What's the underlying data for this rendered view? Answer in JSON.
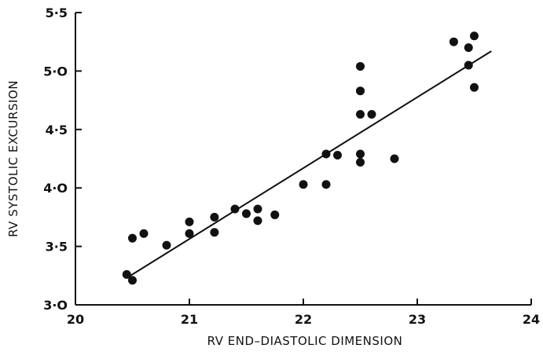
{
  "chart_data": {
    "type": "scatter",
    "title": "",
    "xlabel": "RV END–DIASTOLIC DIMENSION",
    "ylabel": "RV SYSTOLIC EXCURSION",
    "xlim": [
      20,
      24
    ],
    "ylim": [
      3.0,
      5.5
    ],
    "grid": false,
    "legend": "none",
    "x_ticks": [
      {
        "value": 20,
        "label": "20"
      },
      {
        "value": 21,
        "label": "21"
      },
      {
        "value": 22,
        "label": "22"
      },
      {
        "value": 23,
        "label": "23"
      },
      {
        "value": 24,
        "label": "24"
      }
    ],
    "y_ticks": [
      {
        "value": 3.0,
        "label": "3·O"
      },
      {
        "value": 3.5,
        "label": "3·5"
      },
      {
        "value": 4.0,
        "label": "4·O"
      },
      {
        "value": 4.5,
        "label": "4·5"
      },
      {
        "value": 5.0,
        "label": "5·O"
      },
      {
        "value": 5.5,
        "label": "5·5"
      }
    ],
    "points": [
      {
        "x": 20.45,
        "y": 3.26
      },
      {
        "x": 20.5,
        "y": 3.21
      },
      {
        "x": 20.5,
        "y": 3.57
      },
      {
        "x": 20.6,
        "y": 3.61
      },
      {
        "x": 20.8,
        "y": 3.51
      },
      {
        "x": 21.0,
        "y": 3.71
      },
      {
        "x": 21.0,
        "y": 3.61
      },
      {
        "x": 21.22,
        "y": 3.75
      },
      {
        "x": 21.22,
        "y": 3.62
      },
      {
        "x": 21.4,
        "y": 3.82
      },
      {
        "x": 21.5,
        "y": 3.78
      },
      {
        "x": 21.6,
        "y": 3.82
      },
      {
        "x": 21.6,
        "y": 3.72
      },
      {
        "x": 21.75,
        "y": 3.77
      },
      {
        "x": 22.0,
        "y": 4.03
      },
      {
        "x": 22.2,
        "y": 4.29
      },
      {
        "x": 22.2,
        "y": 4.03
      },
      {
        "x": 22.3,
        "y": 4.28
      },
      {
        "x": 22.5,
        "y": 5.04
      },
      {
        "x": 22.5,
        "y": 4.83
      },
      {
        "x": 22.5,
        "y": 4.63
      },
      {
        "x": 22.5,
        "y": 4.29
      },
      {
        "x": 22.5,
        "y": 4.22
      },
      {
        "x": 22.6,
        "y": 4.63
      },
      {
        "x": 22.8,
        "y": 4.25
      },
      {
        "x": 23.32,
        "y": 5.25
      },
      {
        "x": 23.45,
        "y": 5.2
      },
      {
        "x": 23.45,
        "y": 5.05
      },
      {
        "x": 23.5,
        "y": 5.3
      },
      {
        "x": 23.5,
        "y": 4.86
      }
    ],
    "regression_line": {
      "x": [
        20.45,
        23.65
      ],
      "y": [
        3.23,
        5.17
      ]
    },
    "colors": {
      "axis": "#111111",
      "marker": "#111111",
      "line": "#111111",
      "background": "#ffffff"
    }
  }
}
